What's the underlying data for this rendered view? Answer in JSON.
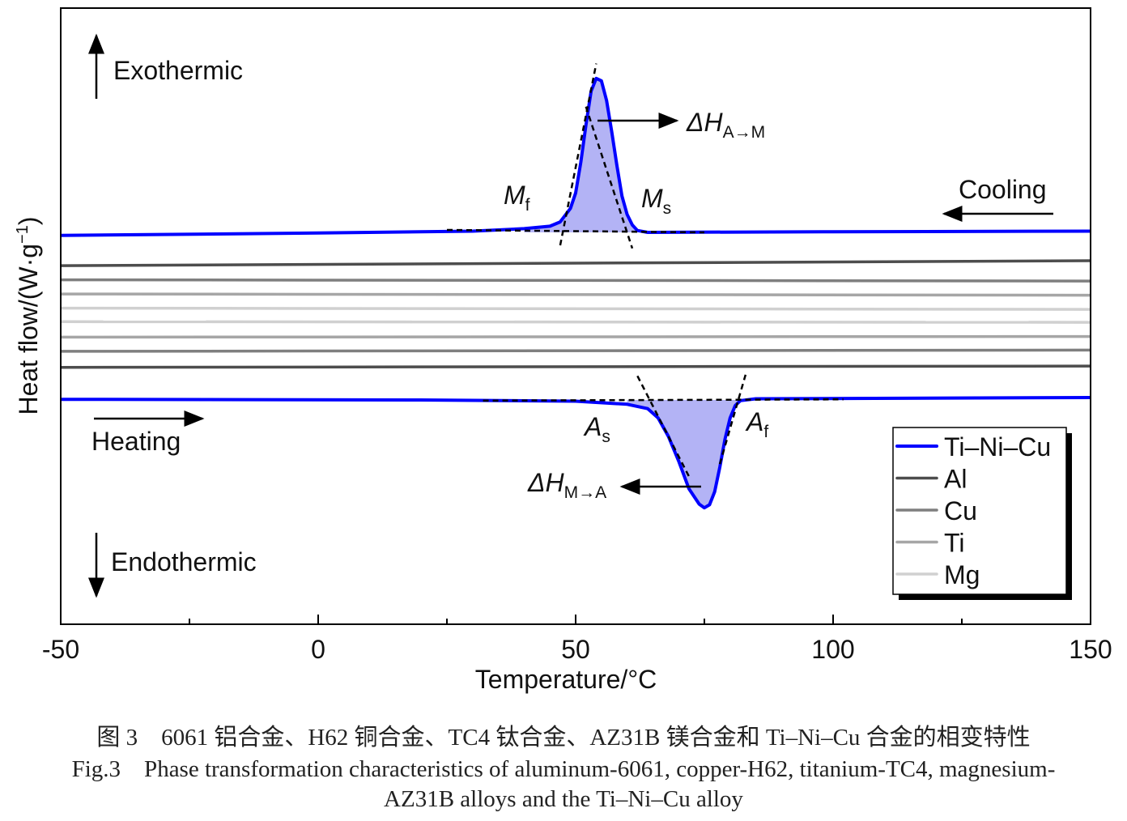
{
  "chart_data": {
    "type": "line",
    "xlabel": "Temperature/°C",
    "ylabel": "Heat flow/(W·g",
    "ylabel_sup": "−1",
    "ylabel_end": ")",
    "xlim": [
      -50,
      150
    ],
    "ylim": [
      0,
      100
    ],
    "y_units": "arbitrary (no y tick labels shown)",
    "x_ticks": [
      "-50",
      "0",
      "50",
      "100",
      "150"
    ],
    "x_tick_values": [
      -50,
      0,
      50,
      100,
      150
    ],
    "x_minor_ticks": [
      -25,
      25,
      75,
      125
    ],
    "grid": false,
    "legend_position": "bottom-right",
    "legend": [
      {
        "name": "Ti–Ni–Cu",
        "color": "#0000ff"
      },
      {
        "name": "Al",
        "color": "#4d4d4d"
      },
      {
        "name": "Cu",
        "color": "#7f7f7f"
      },
      {
        "name": "Ti",
        "color": "#a6a6a6"
      },
      {
        "name": "Mg",
        "color": "#d0d0d0"
      }
    ],
    "series": [
      {
        "name": "Ti–Ni–Cu",
        "mode": "Cooling",
        "color": "#0000ff",
        "x": [
          -50,
          0,
          30,
          40,
          45,
          47,
          49,
          50,
          51,
          52,
          53,
          54,
          55,
          56,
          57,
          58,
          59,
          60,
          61,
          62,
          64,
          100,
          150
        ],
        "y": [
          63.1,
          63.5,
          63.8,
          64.2,
          64.6,
          65.3,
          67.5,
          70,
          75,
          81,
          86.5,
          88.6,
          88.2,
          85,
          80,
          74.5,
          69.5,
          66.5,
          64.8,
          63.9,
          63.6,
          63.7,
          63.8
        ]
      },
      {
        "name": "Al",
        "mode": "Cooling",
        "color": "#4d4d4d",
        "x": [
          -50,
          150
        ],
        "y": [
          58.2,
          59.0
        ]
      },
      {
        "name": "Cu",
        "mode": "Cooling",
        "color": "#7f7f7f",
        "x": [
          -50,
          150
        ],
        "y": [
          55.9,
          55.7
        ]
      },
      {
        "name": "Ti",
        "mode": "Cooling",
        "color": "#a6a6a6",
        "x": [
          -50,
          150
        ],
        "y": [
          53.6,
          53.4
        ]
      },
      {
        "name": "Mg",
        "mode": "Cooling",
        "color": "#d0d0d0",
        "x": [
          -50,
          150
        ],
        "y": [
          51.3,
          51.1
        ]
      },
      {
        "name": "Mg",
        "mode": "Heating",
        "color": "#d0d0d0",
        "x": [
          -50,
          150
        ],
        "y": [
          49.1,
          49.0
        ]
      },
      {
        "name": "Ti",
        "mode": "Heating",
        "color": "#a6a6a6",
        "x": [
          -50,
          150
        ],
        "y": [
          46.6,
          46.7
        ]
      },
      {
        "name": "Cu",
        "mode": "Heating",
        "color": "#7f7f7f",
        "x": [
          -50,
          150
        ],
        "y": [
          44.3,
          44.5
        ]
      },
      {
        "name": "Al",
        "mode": "Heating",
        "color": "#4d4d4d",
        "x": [
          -50,
          150
        ],
        "y": [
          41.7,
          41.9
        ]
      },
      {
        "name": "Ti–Ni–Cu",
        "mode": "Heating",
        "color": "#0000ff",
        "x": [
          -50,
          20,
          50,
          60,
          64,
          66,
          68,
          70,
          72,
          74,
          75,
          76,
          77,
          78,
          79,
          80,
          81,
          82,
          85,
          150
        ],
        "y": [
          36.5,
          36.4,
          36.2,
          35.7,
          35.0,
          33.5,
          30.5,
          26.5,
          22,
          19.5,
          18.9,
          19.4,
          21.5,
          25.5,
          30,
          33.5,
          35.5,
          36.3,
          36.6,
          36.8
        ]
      }
    ],
    "annotations": {
      "exothermic": "Exothermic",
      "endothermic": "Endothermic",
      "cooling": "Cooling",
      "heating": "Heating",
      "mf": {
        "main": "M",
        "sub": "f"
      },
      "ms": {
        "main": "M",
        "sub": "s"
      },
      "as": {
        "main": "A",
        "sub": "s"
      },
      "af": {
        "main": "A",
        "sub": "f"
      },
      "dh_am": {
        "main": "ΔH",
        "sub": "A→M"
      },
      "dh_ma": {
        "main": "ΔH",
        "sub": "M→A"
      }
    },
    "peak_fill_color": "#b3b3f5"
  },
  "caption": {
    "cn": "图 3　6061 铝合金、H62 铜合金、TC4 钛合金、AZ31B 镁合金和 Ti–Ni–Cu 合金的相变特性",
    "en_line1": "Fig.3　Phase transformation characteristics of aluminum-6061, copper-H62, titanium-TC4, magnesium-",
    "en_line2": "AZ31B alloys and the Ti–Ni–Cu alloy"
  }
}
